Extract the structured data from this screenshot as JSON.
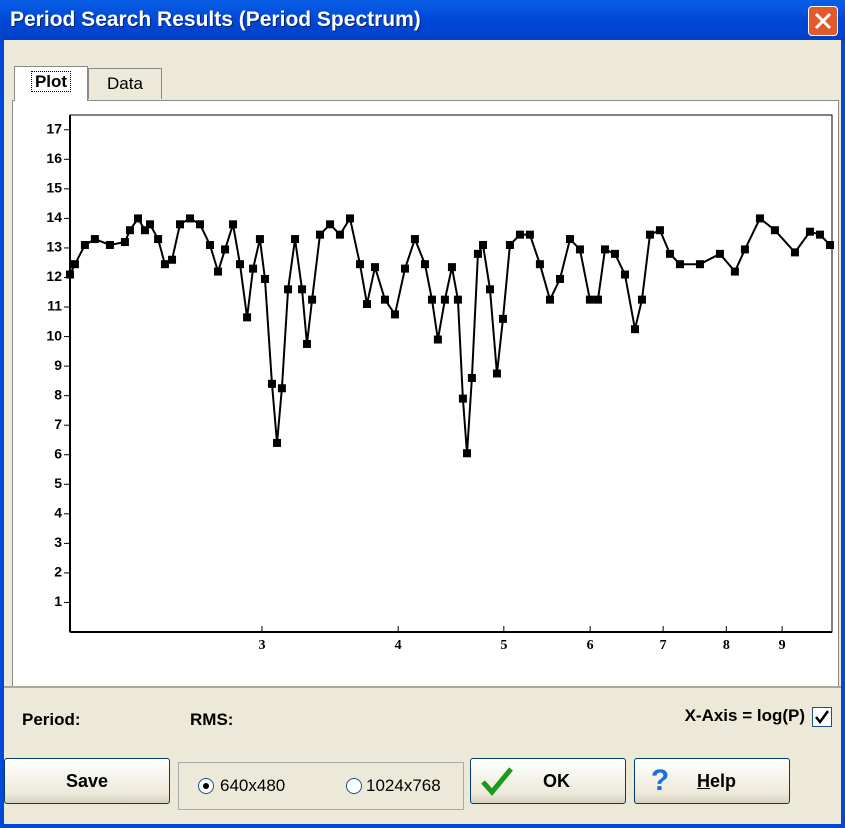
{
  "window": {
    "title": "Period Search Results (Period Spectrum)"
  },
  "tabs": [
    "Plot",
    "Data"
  ],
  "chart_data": {
    "type": "line",
    "color": "#000000",
    "log_x": true,
    "xlim": [
      2,
      10
    ],
    "xticks": [
      3,
      4,
      5,
      6,
      7,
      8,
      9
    ],
    "ylim": [
      0,
      17.5
    ],
    "yticks": [
      1,
      2,
      3,
      4,
      5,
      6,
      7,
      8,
      9,
      10,
      11,
      12,
      13,
      14,
      15,
      16,
      17
    ],
    "x": [
      2.0,
      2.021,
      2.064,
      2.108,
      2.176,
      2.246,
      2.27,
      2.309,
      2.343,
      2.368,
      2.409,
      2.444,
      2.481,
      2.523,
      2.577,
      2.632,
      2.688,
      2.734,
      2.775,
      2.822,
      2.864,
      2.907,
      2.944,
      2.987,
      3.019,
      3.064,
      3.097,
      3.129,
      3.17,
      3.217,
      3.265,
      3.299,
      3.335,
      3.391,
      3.464,
      3.537,
      3.613,
      3.69,
      3.745,
      3.809,
      3.89,
      3.973,
      4.058,
      4.144,
      4.233,
      4.296,
      4.35,
      4.415,
      4.481,
      4.538,
      4.586,
      4.626,
      4.674,
      4.734,
      4.785,
      4.856,
      4.928,
      4.991,
      5.065,
      5.173,
      5.283,
      5.396,
      5.512,
      5.63,
      5.75,
      5.872,
      5.997,
      6.1,
      6.191,
      6.323,
      6.458,
      6.596,
      6.694,
      6.808,
      6.953,
      7.102,
      7.253,
      7.566,
      7.892,
      8.146,
      8.32,
      8.588,
      8.864,
      9.247,
      9.545,
      9.749,
      9.958
    ],
    "values": [
      12.1,
      12.45,
      13.1,
      13.3,
      13.1,
      13.2,
      13.6,
      14.0,
      13.6,
      13.8,
      13.3,
      12.45,
      12.6,
      13.8,
      14.0,
      13.8,
      13.1,
      12.2,
      12.95,
      13.8,
      12.45,
      10.65,
      12.3,
      13.3,
      11.95,
      8.4,
      6.4,
      8.25,
      11.6,
      13.3,
      11.6,
      9.75,
      11.25,
      13.45,
      13.8,
      13.45,
      14.0,
      12.45,
      11.1,
      12.35,
      11.25,
      10.75,
      12.3,
      13.3,
      12.45,
      11.25,
      9.9,
      11.25,
      12.35,
      11.25,
      7.9,
      6.05,
      8.6,
      12.8,
      13.1,
      11.6,
      8.75,
      10.6,
      13.1,
      13.45,
      13.45,
      12.45,
      11.25,
      11.95,
      13.3,
      12.95,
      11.25,
      11.25,
      12.95,
      12.8,
      12.1,
      10.25,
      11.25,
      13.45,
      13.6,
      12.8,
      12.45,
      12.45,
      12.8,
      12.2,
      12.95,
      14.0,
      13.6,
      12.85,
      13.55,
      13.45,
      13.1
    ]
  },
  "labels": {
    "period": "Period:",
    "rms": "RMS:",
    "xaxis_log": "X-Axis = log(P)"
  },
  "checkbox_checked": true,
  "buttons": {
    "save": "Save",
    "ok": "OK",
    "help": "Help"
  },
  "radios": [
    {
      "label": "640x480",
      "checked": true
    },
    {
      "label": "1024x768",
      "checked": false
    }
  ]
}
